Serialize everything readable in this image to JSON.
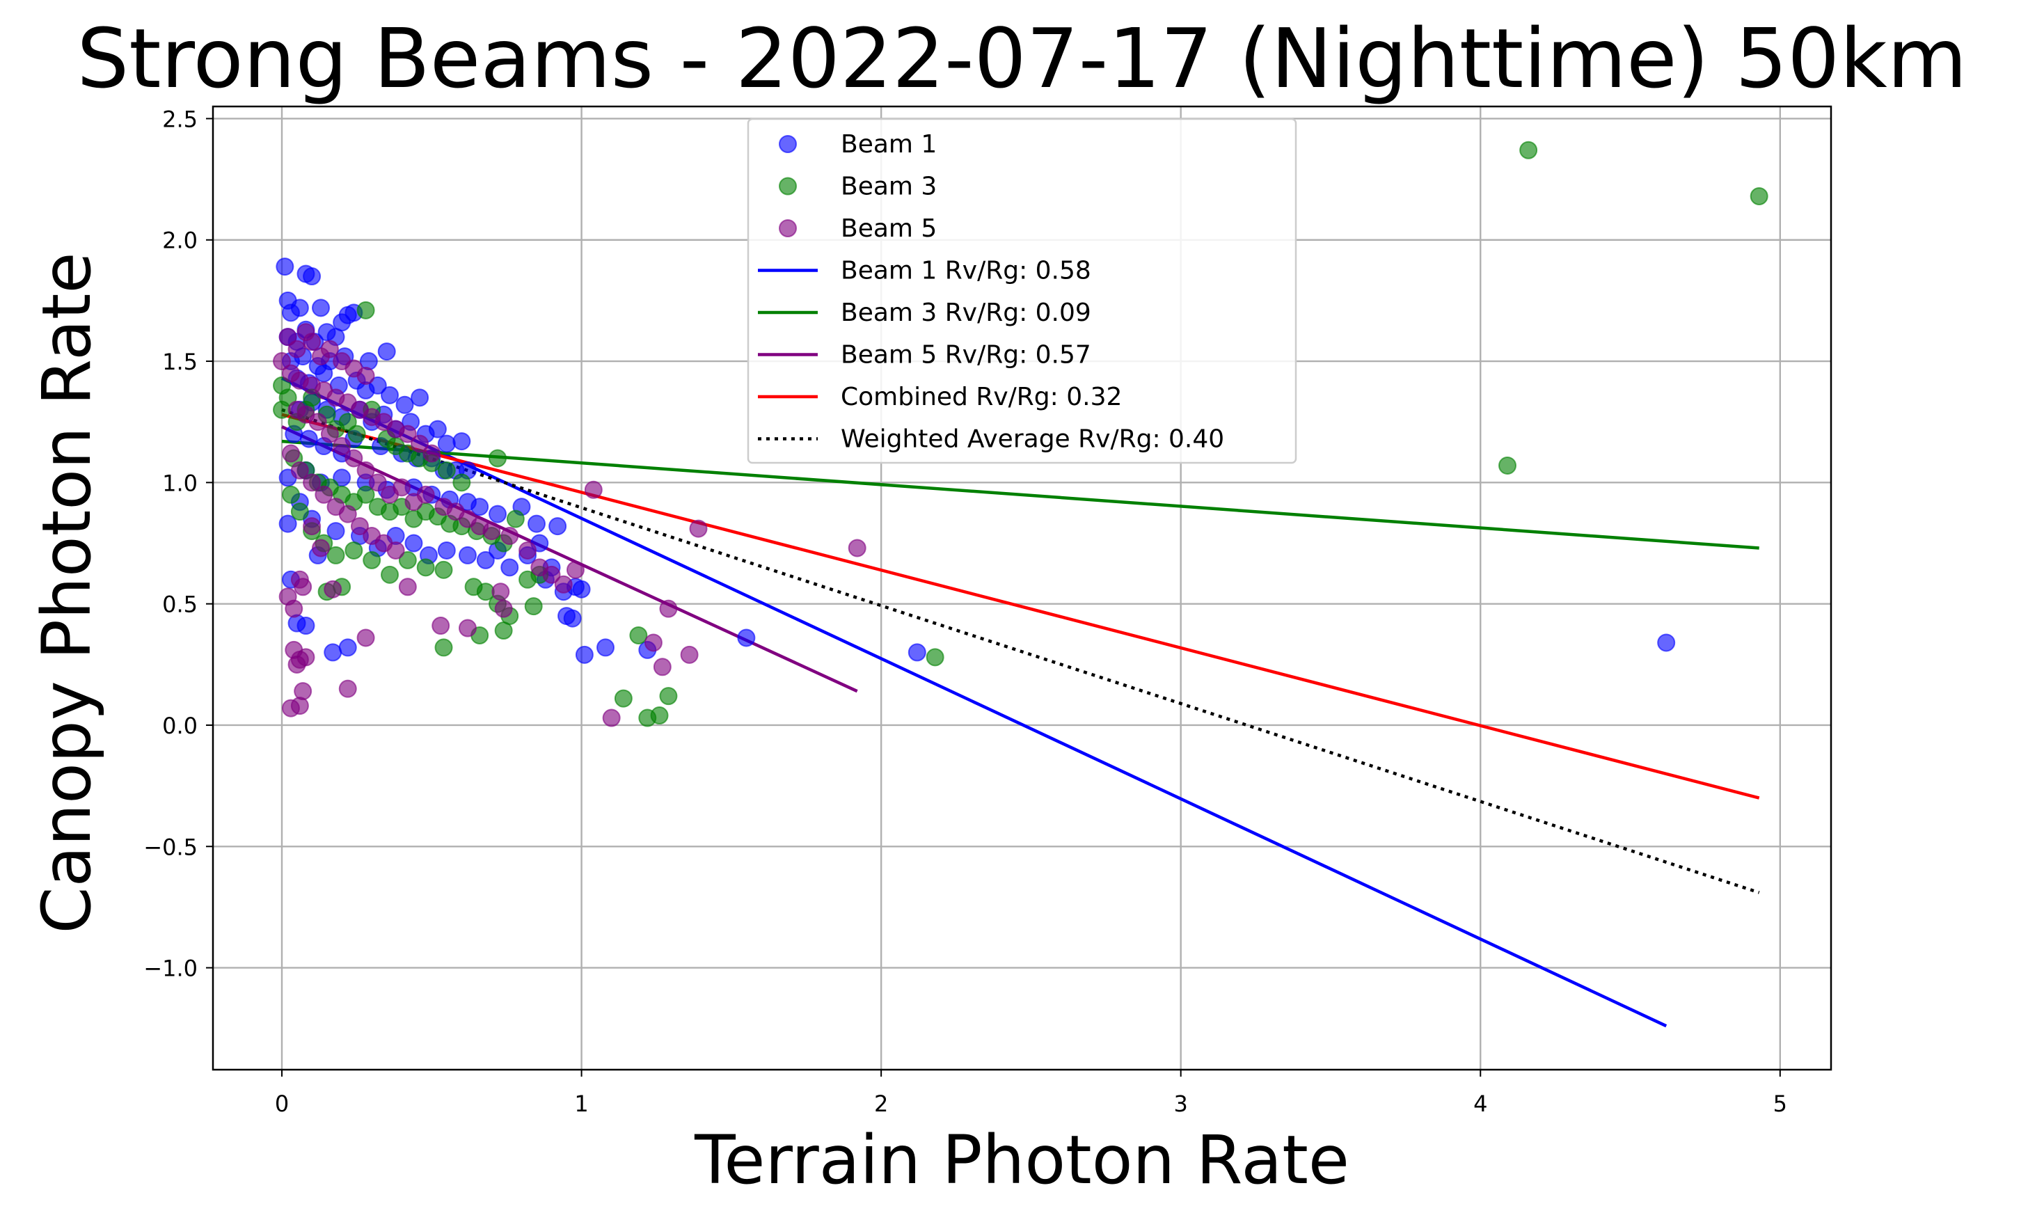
{
  "chart_data": {
    "type": "scatter",
    "title": "Strong Beams - 2022-07-17 (Nighttime) 50km",
    "xlabel": "Terrain Photon Rate",
    "ylabel": "Canopy Photon Rate",
    "xlim": [
      -0.23,
      5.17
    ],
    "ylim": [
      -1.42,
      2.55
    ],
    "xticks": [
      0,
      1,
      2,
      3,
      4,
      5
    ],
    "xtick_labels": [
      "0",
      "1",
      "2",
      "3",
      "4",
      "5"
    ],
    "yticks": [
      -1.0,
      -0.5,
      0.0,
      0.5,
      1.0,
      1.5,
      2.0,
      2.5
    ],
    "ytick_labels": [
      "−1.0",
      "−0.5",
      "0.0",
      "0.5",
      "1.0",
      "1.5",
      "2.0",
      "2.5"
    ],
    "grid": true,
    "legend_position": "top-center",
    "series": [
      {
        "name": "Beam 1",
        "kind": "scatter",
        "color": "#0000ff",
        "points": [
          [
            0.01,
            1.89
          ],
          [
            0.02,
            1.75
          ],
          [
            0.08,
            1.86
          ],
          [
            0.1,
            1.85
          ],
          [
            0.03,
            1.7
          ],
          [
            0.06,
            1.72
          ],
          [
            0.13,
            1.72
          ],
          [
            0.22,
            1.69
          ],
          [
            0.24,
            1.7
          ],
          [
            0.2,
            1.66
          ],
          [
            0.02,
            1.6
          ],
          [
            0.05,
            1.58
          ],
          [
            0.08,
            1.63
          ],
          [
            0.11,
            1.58
          ],
          [
            0.15,
            1.62
          ],
          [
            0.18,
            1.6
          ],
          [
            0.03,
            1.5
          ],
          [
            0.07,
            1.52
          ],
          [
            0.12,
            1.48
          ],
          [
            0.16,
            1.5
          ],
          [
            0.21,
            1.52
          ],
          [
            0.29,
            1.5
          ],
          [
            0.35,
            1.54
          ],
          [
            0.05,
            1.43
          ],
          [
            0.09,
            1.41
          ],
          [
            0.14,
            1.45
          ],
          [
            0.19,
            1.4
          ],
          [
            0.25,
            1.42
          ],
          [
            0.28,
            1.38
          ],
          [
            0.32,
            1.4
          ],
          [
            0.36,
            1.36
          ],
          [
            0.41,
            1.32
          ],
          [
            0.46,
            1.35
          ],
          [
            0.06,
            1.3
          ],
          [
            0.1,
            1.33
          ],
          [
            0.15,
            1.3
          ],
          [
            0.2,
            1.27
          ],
          [
            0.26,
            1.3
          ],
          [
            0.3,
            1.25
          ],
          [
            0.34,
            1.28
          ],
          [
            0.38,
            1.22
          ],
          [
            0.43,
            1.25
          ],
          [
            0.48,
            1.2
          ],
          [
            0.52,
            1.22
          ],
          [
            0.55,
            1.16
          ],
          [
            0.6,
            1.17
          ],
          [
            0.04,
            1.2
          ],
          [
            0.09,
            1.18
          ],
          [
            0.14,
            1.15
          ],
          [
            0.2,
            1.12
          ],
          [
            0.24,
            1.18
          ],
          [
            0.33,
            1.15
          ],
          [
            0.4,
            1.12
          ],
          [
            0.45,
            1.1
          ],
          [
            0.5,
            1.1
          ],
          [
            0.54,
            1.05
          ],
          [
            0.58,
            1.05
          ],
          [
            0.62,
            1.05
          ],
          [
            0.08,
            1.05
          ],
          [
            0.13,
            1.0
          ],
          [
            0.2,
            1.02
          ],
          [
            0.28,
            1.0
          ],
          [
            0.35,
            0.97
          ],
          [
            0.44,
            0.98
          ],
          [
            0.5,
            0.95
          ],
          [
            0.56,
            0.93
          ],
          [
            0.62,
            0.92
          ],
          [
            0.66,
            0.9
          ],
          [
            0.72,
            0.87
          ],
          [
            0.8,
            0.9
          ],
          [
            0.85,
            0.83
          ],
          [
            0.92,
            0.82
          ],
          [
            0.02,
            1.02
          ],
          [
            0.06,
            0.92
          ],
          [
            0.1,
            0.85
          ],
          [
            0.18,
            0.8
          ],
          [
            0.26,
            0.78
          ],
          [
            0.32,
            0.73
          ],
          [
            0.38,
            0.78
          ],
          [
            0.44,
            0.75
          ],
          [
            0.49,
            0.7
          ],
          [
            0.55,
            0.72
          ],
          [
            0.62,
            0.7
          ],
          [
            0.68,
            0.68
          ],
          [
            0.72,
            0.72
          ],
          [
            0.76,
            0.65
          ],
          [
            0.82,
            0.7
          ],
          [
            0.86,
            0.75
          ],
          [
            0.88,
            0.6
          ],
          [
            0.9,
            0.65
          ],
          [
            0.94,
            0.55
          ],
          [
            0.98,
            0.57
          ],
          [
            1.0,
            0.56
          ],
          [
            0.95,
            0.45
          ],
          [
            0.97,
            0.44
          ],
          [
            1.01,
            0.29
          ],
          [
            1.08,
            0.32
          ],
          [
            1.22,
            0.31
          ],
          [
            1.55,
            0.36
          ],
          [
            2.12,
            0.3
          ],
          [
            4.62,
            0.34
          ],
          [
            0.03,
            0.6
          ],
          [
            0.05,
            0.42
          ],
          [
            0.08,
            0.41
          ],
          [
            0.17,
            0.3
          ],
          [
            0.22,
            0.32
          ],
          [
            0.12,
            0.7
          ],
          [
            0.02,
            0.83
          ]
        ]
      },
      {
        "name": "Beam 3",
        "kind": "scatter",
        "color": "#008000",
        "points": [
          [
            0.0,
            1.4
          ],
          [
            0.02,
            1.35
          ],
          [
            0.0,
            1.3
          ],
          [
            0.05,
            1.25
          ],
          [
            0.08,
            1.3
          ],
          [
            0.1,
            1.35
          ],
          [
            0.15,
            1.28
          ],
          [
            0.18,
            1.22
          ],
          [
            0.22,
            1.25
          ],
          [
            0.25,
            1.2
          ],
          [
            0.28,
            1.71
          ],
          [
            0.3,
            1.3
          ],
          [
            0.35,
            1.18
          ],
          [
            0.38,
            1.15
          ],
          [
            0.42,
            1.12
          ],
          [
            0.46,
            1.1
          ],
          [
            0.5,
            1.08
          ],
          [
            0.55,
            1.05
          ],
          [
            0.6,
            1.0
          ],
          [
            0.72,
            1.1
          ],
          [
            0.04,
            1.1
          ],
          [
            0.08,
            1.05
          ],
          [
            0.12,
            1.0
          ],
          [
            0.16,
            0.98
          ],
          [
            0.2,
            0.95
          ],
          [
            0.24,
            0.92
          ],
          [
            0.28,
            0.95
          ],
          [
            0.32,
            0.9
          ],
          [
            0.36,
            0.88
          ],
          [
            0.4,
            0.9
          ],
          [
            0.44,
            0.85
          ],
          [
            0.48,
            0.88
          ],
          [
            0.52,
            0.86
          ],
          [
            0.56,
            0.83
          ],
          [
            0.6,
            0.82
          ],
          [
            0.65,
            0.8
          ],
          [
            0.7,
            0.78
          ],
          [
            0.74,
            0.75
          ],
          [
            0.78,
            0.85
          ],
          [
            0.82,
            0.6
          ],
          [
            0.86,
            0.62
          ],
          [
            0.03,
            0.95
          ],
          [
            0.06,
            0.88
          ],
          [
            0.1,
            0.8
          ],
          [
            0.14,
            0.75
          ],
          [
            0.18,
            0.7
          ],
          [
            0.24,
            0.72
          ],
          [
            0.3,
            0.68
          ],
          [
            0.36,
            0.62
          ],
          [
            0.42,
            0.68
          ],
          [
            0.48,
            0.65
          ],
          [
            0.54,
            0.64
          ],
          [
            0.64,
            0.57
          ],
          [
            0.68,
            0.55
          ],
          [
            0.72,
            0.5
          ],
          [
            0.76,
            0.45
          ],
          [
            0.84,
            0.49
          ],
          [
            0.15,
            0.55
          ],
          [
            0.2,
            0.57
          ],
          [
            0.54,
            0.32
          ],
          [
            0.66,
            0.37
          ],
          [
            0.74,
            0.39
          ],
          [
            1.19,
            0.37
          ],
          [
            1.14,
            0.11
          ],
          [
            1.22,
            0.03
          ],
          [
            1.26,
            0.04
          ],
          [
            1.29,
            0.12
          ],
          [
            2.18,
            0.28
          ],
          [
            4.09,
            1.07
          ],
          [
            4.16,
            2.37
          ],
          [
            4.93,
            2.18
          ]
        ]
      },
      {
        "name": "Beam 5",
        "kind": "scatter",
        "color": "#800080",
        "points": [
          [
            0.0,
            1.5
          ],
          [
            0.02,
            1.6
          ],
          [
            0.05,
            1.55
          ],
          [
            0.08,
            1.62
          ],
          [
            0.1,
            1.58
          ],
          [
            0.13,
            1.52
          ],
          [
            0.16,
            1.55
          ],
          [
            0.2,
            1.5
          ],
          [
            0.24,
            1.47
          ],
          [
            0.28,
            1.44
          ],
          [
            0.03,
            1.45
          ],
          [
            0.06,
            1.42
          ],
          [
            0.1,
            1.4
          ],
          [
            0.14,
            1.38
          ],
          [
            0.18,
            1.35
          ],
          [
            0.22,
            1.33
          ],
          [
            0.26,
            1.3
          ],
          [
            0.3,
            1.27
          ],
          [
            0.34,
            1.25
          ],
          [
            0.38,
            1.22
          ],
          [
            0.42,
            1.2
          ],
          [
            0.46,
            1.16
          ],
          [
            0.5,
            1.12
          ],
          [
            0.05,
            1.3
          ],
          [
            0.08,
            1.28
          ],
          [
            0.12,
            1.25
          ],
          [
            0.16,
            1.2
          ],
          [
            0.2,
            1.15
          ],
          [
            0.24,
            1.1
          ],
          [
            0.28,
            1.05
          ],
          [
            0.32,
            1.0
          ],
          [
            0.36,
            0.95
          ],
          [
            0.4,
            0.98
          ],
          [
            0.44,
            0.92
          ],
          [
            0.48,
            0.95
          ],
          [
            0.54,
            0.9
          ],
          [
            0.58,
            0.88
          ],
          [
            0.62,
            0.85
          ],
          [
            0.66,
            0.82
          ],
          [
            0.7,
            0.8
          ],
          [
            0.76,
            0.78
          ],
          [
            0.82,
            0.72
          ],
          [
            0.86,
            0.65
          ],
          [
            0.9,
            0.62
          ],
          [
            0.94,
            0.58
          ],
          [
            0.98,
            0.64
          ],
          [
            1.04,
            0.97
          ],
          [
            0.03,
            1.12
          ],
          [
            0.06,
            1.05
          ],
          [
            0.1,
            1.0
          ],
          [
            0.14,
            0.95
          ],
          [
            0.18,
            0.9
          ],
          [
            0.22,
            0.87
          ],
          [
            0.26,
            0.82
          ],
          [
            0.3,
            0.78
          ],
          [
            0.34,
            0.75
          ],
          [
            0.38,
            0.72
          ],
          [
            0.1,
            0.82
          ],
          [
            0.13,
            0.73
          ],
          [
            0.02,
            0.53
          ],
          [
            0.04,
            0.48
          ],
          [
            0.06,
            0.6
          ],
          [
            0.07,
            0.57
          ],
          [
            0.17,
            0.56
          ],
          [
            0.42,
            0.57
          ],
          [
            0.53,
            0.41
          ],
          [
            0.62,
            0.4
          ],
          [
            0.73,
            0.55
          ],
          [
            0.74,
            0.48
          ],
          [
            0.04,
            0.31
          ],
          [
            0.05,
            0.25
          ],
          [
            0.06,
            0.27
          ],
          [
            0.08,
            0.28
          ],
          [
            0.03,
            0.07
          ],
          [
            0.06,
            0.08
          ],
          [
            0.07,
            0.14
          ],
          [
            0.22,
            0.15
          ],
          [
            0.28,
            0.36
          ],
          [
            1.1,
            0.03
          ],
          [
            1.24,
            0.34
          ],
          [
            1.27,
            0.24
          ],
          [
            1.29,
            0.48
          ],
          [
            1.36,
            0.29
          ],
          [
            1.39,
            0.81
          ],
          [
            1.92,
            0.73
          ]
        ]
      },
      {
        "name": "Beam 1 Rv/Rg: 0.58",
        "kind": "line",
        "color": "#0000ff",
        "style": "solid",
        "points": [
          [
            0.0,
            1.43
          ],
          [
            4.62,
            -1.24
          ]
        ]
      },
      {
        "name": "Beam 3 Rv/Rg: 0.09",
        "kind": "line",
        "color": "#008000",
        "style": "solid",
        "points": [
          [
            0.0,
            1.17
          ],
          [
            4.93,
            0.73
          ]
        ]
      },
      {
        "name": "Beam 5 Rv/Rg: 0.57",
        "kind": "line",
        "color": "#800080",
        "style": "solid",
        "points": [
          [
            0.0,
            1.23
          ],
          [
            1.92,
            0.14
          ]
        ]
      },
      {
        "name": "Combined Rv/Rg: 0.32",
        "kind": "line",
        "color": "#ff0000",
        "style": "solid",
        "points": [
          [
            0.0,
            1.28
          ],
          [
            4.93,
            -0.3
          ]
        ]
      },
      {
        "name": "Weighted Average Rv/Rg: 0.40",
        "kind": "line",
        "color": "#000000",
        "style": "dotted",
        "points": [
          [
            0.0,
            1.3
          ],
          [
            4.93,
            -0.69
          ]
        ]
      }
    ]
  }
}
